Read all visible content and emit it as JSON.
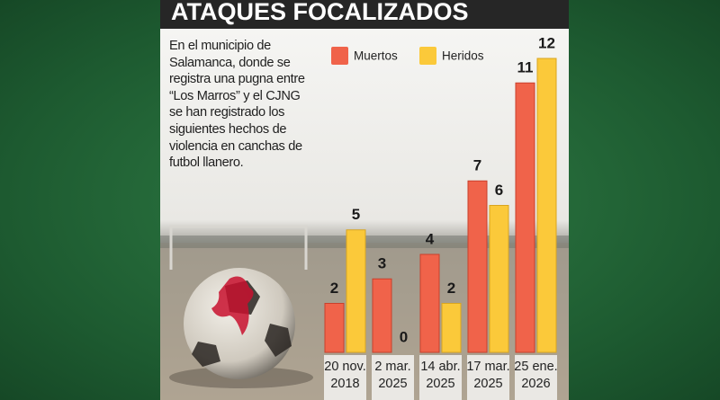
{
  "chart_data": {
    "type": "bar",
    "title": "ATAQUES FOCALIZADOS",
    "subtitle": "En el municipio de Salamanca, donde se registra una pugna entre “Los Marros” y el CJNG se han registrado los siguientes hechos de violencia en canchas de futbol llanero.",
    "categories": [
      "20 nov. 2018",
      "2 mar. 2025",
      "14 abr. 2025",
      "17 mar. 2025",
      "25 ene. 2026"
    ],
    "series": [
      {
        "name": "Muertos",
        "color": "#f0634a",
        "values": [
          2,
          3,
          4,
          7,
          11
        ]
      },
      {
        "name": "Heridos",
        "color": "#fbc93a",
        "values": [
          5,
          0,
          2,
          6,
          12
        ]
      }
    ],
    "legend": "top"
  }
}
